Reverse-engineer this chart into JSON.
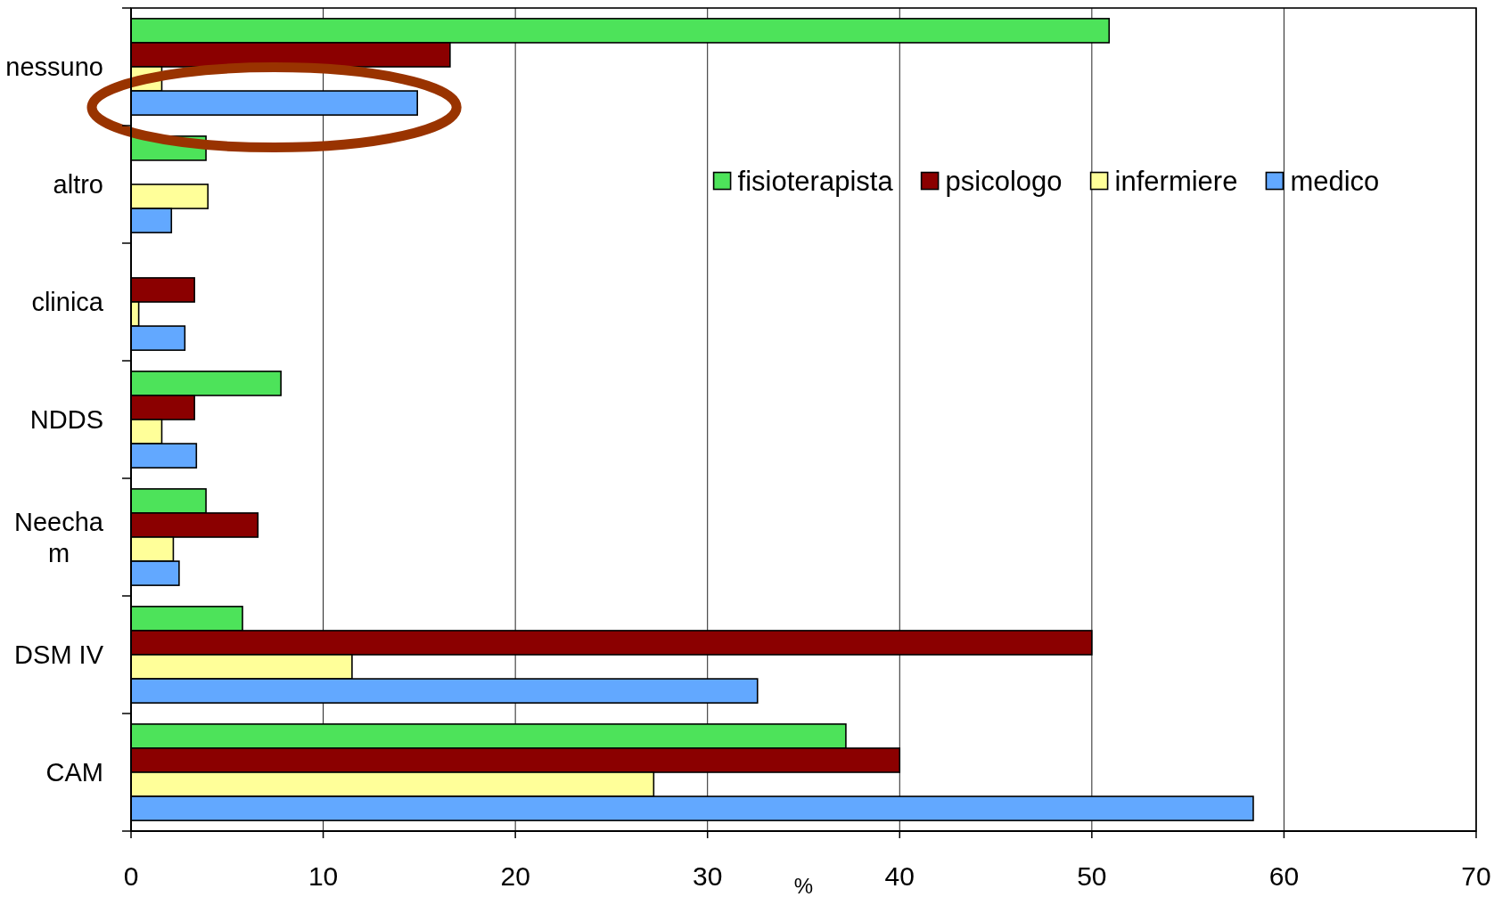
{
  "chart_data": {
    "type": "bar",
    "orientation": "horizontal",
    "categories": [
      "nessuno",
      "altro",
      "clinica",
      "NDDS",
      "Neecham",
      "DSM IV",
      "CAM"
    ],
    "series": [
      {
        "name": "fisioterapista",
        "color": "#4de35a",
        "values": [
          50.9,
          3.9,
          null,
          7.8,
          3.9,
          5.8,
          37.2
        ]
      },
      {
        "name": "psicologo",
        "color": "#8b0000",
        "values": [
          16.6,
          null,
          3.3,
          3.3,
          6.6,
          50.0,
          40.0
        ]
      },
      {
        "name": "infermiere",
        "color": "#ffff99",
        "values": [
          1.6,
          4.0,
          0.4,
          1.6,
          2.2,
          11.5,
          27.2
        ]
      },
      {
        "name": "medico",
        "color": "#62a8ff",
        "values": [
          14.9,
          2.1,
          2.8,
          3.4,
          2.5,
          32.6,
          58.4
        ]
      }
    ],
    "xlabel": "%",
    "xlim": [
      0,
      70
    ],
    "xticks": [
      0,
      10,
      20,
      30,
      40,
      50,
      60,
      70
    ],
    "grid": "x",
    "legend": "top right"
  }
}
